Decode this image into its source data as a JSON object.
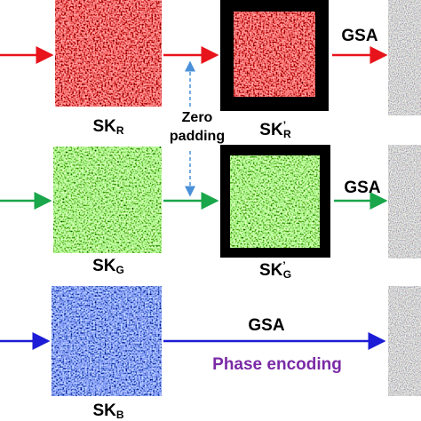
{
  "rows": [
    {
      "key": {
        "main": "SK",
        "sub": "R"
      },
      "padded_key": {
        "main": "SK",
        "prime": "’",
        "sub": "R"
      },
      "gsa": "GSA"
    },
    {
      "key": {
        "main": "SK",
        "sub": "G"
      },
      "padded_key": {
        "main": "SK",
        "prime": "’",
        "sub": "G"
      },
      "gsa": "GSA"
    },
    {
      "key": {
        "main": "SK",
        "sub": "B"
      },
      "gsa": "GSA",
      "phase_encoding": "Phase encoding"
    }
  ],
  "zero_padding": {
    "line1": "Zero",
    "line2": "padding"
  }
}
